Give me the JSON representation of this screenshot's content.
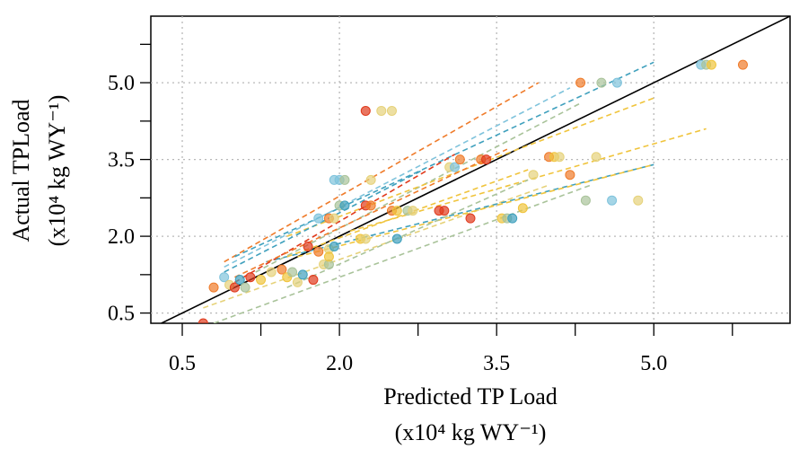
{
  "chart_data": {
    "type": "scatter",
    "xlabel_line1": "Predicted TP Load",
    "xlabel_line2": "(x10⁴ kg WY⁻¹)",
    "ylabel_line1": "Actual TPLoad",
    "ylabel_line2": "(x10⁴ kg WY⁻¹)",
    "xlim": [
      0.2,
      6.3
    ],
    "ylim": [
      0.3,
      6.3
    ],
    "xticks": [
      0.5,
      2.0,
      3.5,
      5.0
    ],
    "yticks": [
      0.5,
      2.0,
      3.5,
      5.0
    ],
    "xtick_labels": [
      "0.5",
      "2.0",
      "3.5",
      "5.0"
    ],
    "ytick_labels": [
      "0.5",
      "2.0",
      "3.5",
      "5.0"
    ],
    "minor_step": 0.75,
    "grid": true,
    "reference_line": "1:1",
    "colors": {
      "red": "#e03a1c",
      "orange": "#ef7b2a",
      "gold": "#f0c43c",
      "sand": "#e6d27a",
      "sage": "#a9c39a",
      "teal": "#3fa0bd",
      "lightblue": "#7fc3dc"
    },
    "trend_lines": [
      {
        "color": "orange",
        "x": [
          0.9,
          3.9
        ],
        "y": [
          1.5,
          5.0
        ]
      },
      {
        "color": "teal",
        "x": [
          1.0,
          5.0
        ],
        "y": [
          1.6,
          5.4
        ]
      },
      {
        "color": "lightblue",
        "x": [
          0.9,
          4.2
        ],
        "y": [
          1.4,
          4.9
        ]
      },
      {
        "color": "sage",
        "x": [
          1.2,
          4.3
        ],
        "y": [
          1.3,
          4.6
        ]
      },
      {
        "color": "gold",
        "x": [
          1.5,
          5.0
        ],
        "y": [
          2.0,
          4.7
        ]
      },
      {
        "color": "gold",
        "x": [
          2.1,
          5.5
        ],
        "y": [
          2.1,
          4.1
        ]
      },
      {
        "color": "sand",
        "x": [
          0.7,
          4.0
        ],
        "y": [
          0.6,
          3.0
        ]
      },
      {
        "color": "teal",
        "x": [
          1.3,
          5.0
        ],
        "y": [
          1.5,
          3.4
        ]
      },
      {
        "color": "gold",
        "x": [
          1.6,
          5.0
        ],
        "y": [
          1.6,
          3.4
        ]
      },
      {
        "color": "sage",
        "x": [
          0.8,
          4.4
        ],
        "y": [
          0.3,
          3.0
        ]
      },
      {
        "color": "red",
        "x": [
          1.0,
          3.1
        ],
        "y": [
          1.1,
          3.6
        ]
      },
      {
        "color": "orange",
        "x": [
          1.0,
          3.6
        ],
        "y": [
          1.2,
          3.7
        ]
      },
      {
        "color": "sage",
        "x": [
          1.5,
          3.8
        ],
        "y": [
          1.0,
          3.1
        ]
      },
      {
        "color": "teal",
        "x": [
          0.9,
          2.8
        ],
        "y": [
          1.3,
          3.3
        ]
      },
      {
        "color": "gold",
        "x": [
          1.5,
          3.8
        ],
        "y": [
          1.6,
          3.3
        ]
      }
    ],
    "points": [
      {
        "x": 0.7,
        "y": 0.3,
        "color": "red"
      },
      {
        "x": 0.8,
        "y": 1.0,
        "color": "orange"
      },
      {
        "x": 0.9,
        "y": 1.2,
        "color": "lightblue"
      },
      {
        "x": 0.95,
        "y": 1.05,
        "color": "sand"
      },
      {
        "x": 1.0,
        "y": 1.0,
        "color": "red"
      },
      {
        "x": 1.05,
        "y": 1.15,
        "color": "teal"
      },
      {
        "x": 1.1,
        "y": 1.0,
        "color": "sage"
      },
      {
        "x": 1.15,
        "y": 1.2,
        "color": "red"
      },
      {
        "x": 1.25,
        "y": 1.15,
        "color": "gold"
      },
      {
        "x": 1.35,
        "y": 1.3,
        "color": "sand"
      },
      {
        "x": 1.45,
        "y": 1.35,
        "color": "orange"
      },
      {
        "x": 1.5,
        "y": 1.2,
        "color": "gold"
      },
      {
        "x": 1.55,
        "y": 1.3,
        "color": "sage"
      },
      {
        "x": 1.6,
        "y": 1.1,
        "color": "sand"
      },
      {
        "x": 1.65,
        "y": 1.25,
        "color": "teal"
      },
      {
        "x": 1.75,
        "y": 1.15,
        "color": "red"
      },
      {
        "x": 1.7,
        "y": 1.8,
        "color": "red"
      },
      {
        "x": 1.8,
        "y": 1.7,
        "color": "orange"
      },
      {
        "x": 1.85,
        "y": 1.45,
        "color": "sand"
      },
      {
        "x": 1.9,
        "y": 1.75,
        "color": "sand"
      },
      {
        "x": 1.95,
        "y": 1.8,
        "color": "teal"
      },
      {
        "x": 1.9,
        "y": 1.45,
        "color": "sage"
      },
      {
        "x": 1.9,
        "y": 1.6,
        "color": "gold"
      },
      {
        "x": 1.8,
        "y": 2.35,
        "color": "lightblue"
      },
      {
        "x": 1.9,
        "y": 2.35,
        "color": "orange"
      },
      {
        "x": 1.95,
        "y": 2.35,
        "color": "sand"
      },
      {
        "x": 1.95,
        "y": 3.1,
        "color": "lightblue"
      },
      {
        "x": 2.0,
        "y": 3.1,
        "color": "lightblue"
      },
      {
        "x": 2.05,
        "y": 3.1,
        "color": "sage"
      },
      {
        "x": 2.3,
        "y": 3.1,
        "color": "sand"
      },
      {
        "x": 2.0,
        "y": 2.6,
        "color": "sage"
      },
      {
        "x": 2.05,
        "y": 2.6,
        "color": "teal"
      },
      {
        "x": 2.25,
        "y": 2.6,
        "color": "red"
      },
      {
        "x": 2.3,
        "y": 2.6,
        "color": "orange"
      },
      {
        "x": 2.2,
        "y": 1.95,
        "color": "gold"
      },
      {
        "x": 2.25,
        "y": 1.95,
        "color": "sand"
      },
      {
        "x": 2.55,
        "y": 1.95,
        "color": "teal"
      },
      {
        "x": 2.25,
        "y": 4.45,
        "color": "red"
      },
      {
        "x": 2.4,
        "y": 4.45,
        "color": "sand"
      },
      {
        "x": 2.5,
        "y": 4.45,
        "color": "sand"
      },
      {
        "x": 2.5,
        "y": 2.5,
        "color": "orange"
      },
      {
        "x": 2.55,
        "y": 2.5,
        "color": "gold"
      },
      {
        "x": 2.65,
        "y": 2.5,
        "color": "sage"
      },
      {
        "x": 2.7,
        "y": 2.5,
        "color": "sand"
      },
      {
        "x": 2.95,
        "y": 2.5,
        "color": "red"
      },
      {
        "x": 3.0,
        "y": 2.5,
        "color": "red"
      },
      {
        "x": 3.05,
        "y": 3.35,
        "color": "sand"
      },
      {
        "x": 3.1,
        "y": 3.35,
        "color": "lightblue"
      },
      {
        "x": 3.15,
        "y": 3.5,
        "color": "orange"
      },
      {
        "x": 3.35,
        "y": 3.5,
        "color": "orange"
      },
      {
        "x": 3.4,
        "y": 3.5,
        "color": "red"
      },
      {
        "x": 3.25,
        "y": 2.35,
        "color": "red"
      },
      {
        "x": 3.55,
        "y": 2.35,
        "color": "gold"
      },
      {
        "x": 3.6,
        "y": 2.35,
        "color": "sage"
      },
      {
        "x": 3.65,
        "y": 2.35,
        "color": "teal"
      },
      {
        "x": 3.75,
        "y": 2.55,
        "color": "gold"
      },
      {
        "x": 3.85,
        "y": 3.2,
        "color": "sand"
      },
      {
        "x": 4.0,
        "y": 3.55,
        "color": "orange"
      },
      {
        "x": 4.05,
        "y": 3.55,
        "color": "gold"
      },
      {
        "x": 4.1,
        "y": 3.55,
        "color": "sand"
      },
      {
        "x": 4.2,
        "y": 3.2,
        "color": "orange"
      },
      {
        "x": 4.3,
        "y": 5.0,
        "color": "orange"
      },
      {
        "x": 4.5,
        "y": 5.0,
        "color": "sage"
      },
      {
        "x": 4.65,
        "y": 5.0,
        "color": "lightblue"
      },
      {
        "x": 4.45,
        "y": 3.55,
        "color": "sand"
      },
      {
        "x": 4.35,
        "y": 2.7,
        "color": "sage"
      },
      {
        "x": 4.6,
        "y": 2.7,
        "color": "lightblue"
      },
      {
        "x": 4.85,
        "y": 2.7,
        "color": "sand"
      },
      {
        "x": 5.45,
        "y": 5.35,
        "color": "lightblue"
      },
      {
        "x": 5.5,
        "y": 5.35,
        "color": "sage"
      },
      {
        "x": 5.55,
        "y": 5.35,
        "color": "gold"
      },
      {
        "x": 5.85,
        "y": 5.35,
        "color": "orange"
      }
    ]
  }
}
